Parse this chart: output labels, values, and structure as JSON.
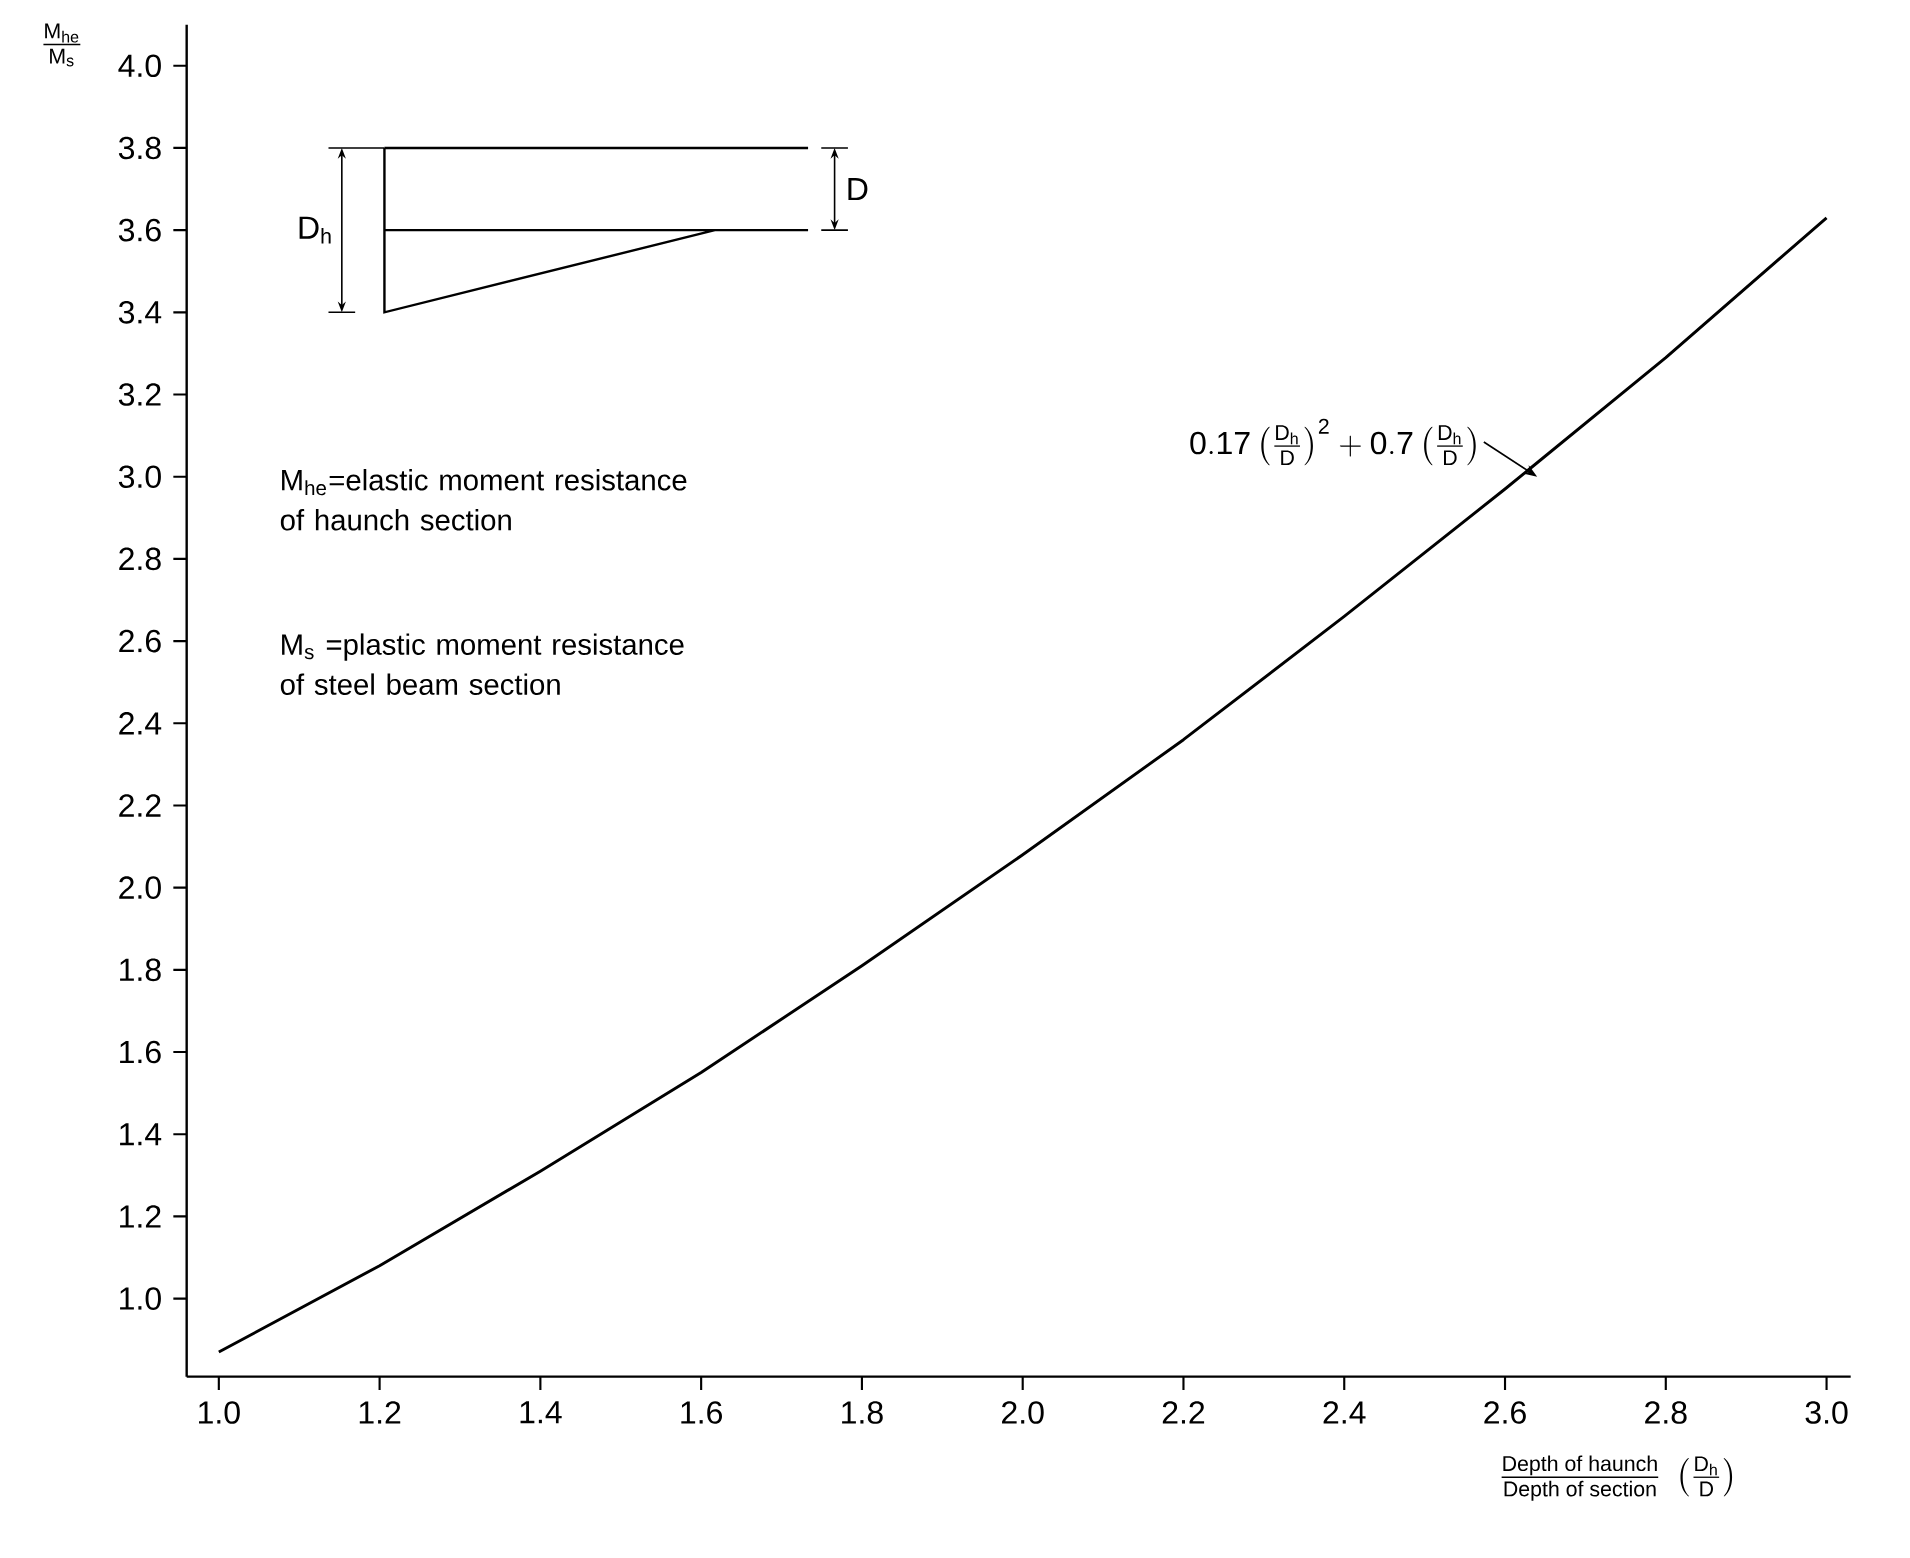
{
  "chart_data": {
    "type": "line",
    "xlabel": "\\frac{\\textsf{Depth of haunch}}{\\textsf{Depth of section}}\\;\\left(\\frac{\\mathsf{D_h}}{\\mathsf{D}}\\right)",
    "ylabel": "\\frac{\\mathsf{M_{he}}}{\\mathsf{M_s}}",
    "x": [
      1.0,
      1.2,
      1.4,
      1.6,
      1.8,
      2.0,
      2.2,
      2.4,
      2.6,
      2.8,
      3.0
    ],
    "series": [
      {
        "color": "#000000",
        "values": [
          0.87,
          1.08,
          1.31,
          1.55,
          1.81,
          2.08,
          2.36,
          2.66,
          2.97,
          3.29,
          3.63
        ]
      }
    ],
    "xlim": [
      0.96,
      3.03
    ],
    "ylim": [
      0.81,
      4.1
    ],
    "xticks": [
      {
        "value": 1.0,
        "label": "1.0"
      },
      {
        "value": 1.2,
        "label": "1.2"
      },
      {
        "value": 1.4,
        "label": "1.4"
      },
      {
        "value": 1.6,
        "label": "1.6"
      },
      {
        "value": 1.8,
        "label": "1.8"
      },
      {
        "value": 2.0,
        "label": "2.0"
      },
      {
        "value": 2.2,
        "label": "2.2"
      },
      {
        "value": 2.4,
        "label": "2.4"
      },
      {
        "value": 2.6,
        "label": "2.6"
      },
      {
        "value": 2.8,
        "label": "2.8"
      },
      {
        "value": 3.0,
        "label": "3.0"
      }
    ],
    "yticks": [
      {
        "value": 1.0,
        "label": "1.0"
      },
      {
        "value": 1.2,
        "label": "1.2"
      },
      {
        "value": 1.4,
        "label": "1.4"
      },
      {
        "value": 1.6,
        "label": "1.6"
      },
      {
        "value": 1.8,
        "label": "1.8"
      },
      {
        "value": 2.0,
        "label": "2.0"
      },
      {
        "value": 2.2,
        "label": "2.2"
      },
      {
        "value": 2.4,
        "label": "2.4"
      },
      {
        "value": 2.6,
        "label": "2.6"
      },
      {
        "value": 2.8,
        "label": "2.8"
      },
      {
        "value": 3.0,
        "label": "3.0"
      },
      {
        "value": 3.2,
        "label": "3.2"
      },
      {
        "value": 3.4,
        "label": "3.4"
      },
      {
        "value": 3.6,
        "label": "3.6"
      },
      {
        "value": 3.8,
        "label": "3.8"
      },
      {
        "value": 4.0,
        "label": "4.0"
      }
    ],
    "annotations": [
      {
        "text": "\\mathsf{0.17}\\left(\\frac{\\mathsf{D_h}}{\\mathsf{D}}\\right)^{\\mathsf{2}}+\\mathsf{0.7}\\left(\\frac{\\mathsf{D_h}}{\\mathsf{D}}\\right)",
        "x": 2.64,
        "y": 3.0
      },
      "M$_{he}$=elastic moment resistance of haunch section",
      "M$_{s}$ =plastic moment resistance of steel beam section",
      "D$_{h}$",
      "D"
    ],
    "grid": false,
    "marker": "none",
    "line_style": "solid"
  }
}
